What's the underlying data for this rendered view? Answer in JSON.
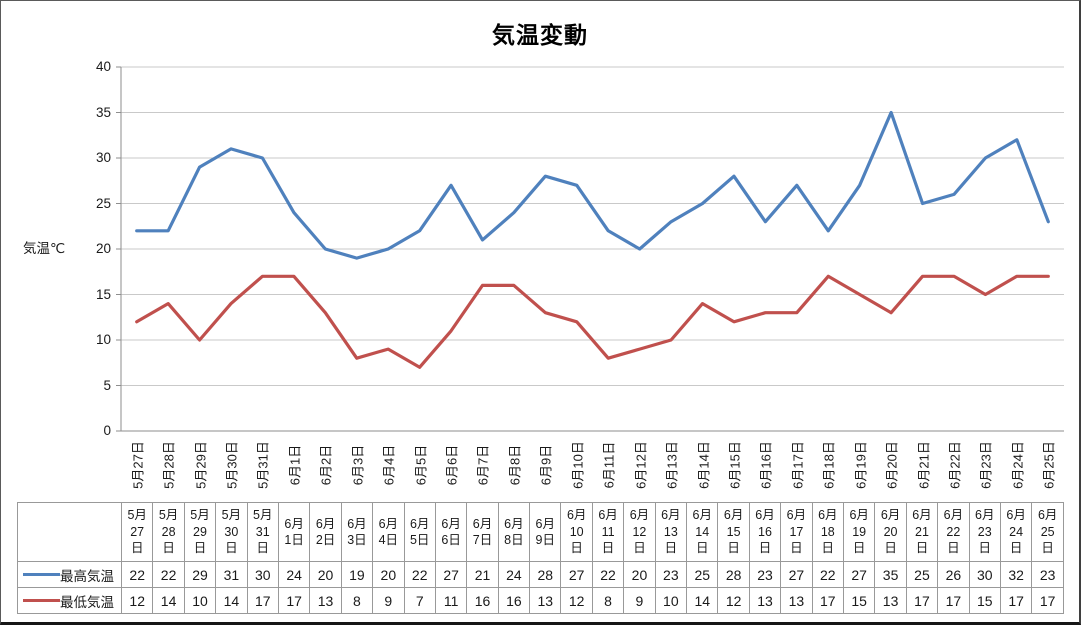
{
  "chart_data": {
    "type": "line",
    "title": "気温変動",
    "ylabel": "気温℃",
    "ylim": [
      0,
      40
    ],
    "y_ticks": [
      0,
      5,
      10,
      15,
      20,
      25,
      30,
      35,
      40
    ],
    "grid": true,
    "legend_position": "data-table-left",
    "categories": [
      "5月27日",
      "5月28日",
      "5月29日",
      "5月30日",
      "5月31日",
      "6月1日",
      "6月2日",
      "6月3日",
      "6月4日",
      "6月5日",
      "6月6日",
      "6月7日",
      "6月8日",
      "6月9日",
      "6月10日",
      "6月11日",
      "6月12日",
      "6月13日",
      "6月14日",
      "6月15日",
      "6月16日",
      "6月17日",
      "6月18日",
      "6月19日",
      "6月20日",
      "6月21日",
      "6月22日",
      "6月23日",
      "6月24日",
      "6月25日"
    ],
    "series": [
      {
        "name": "最高気温",
        "color": "#4F81BD",
        "values": [
          22,
          22,
          29,
          31,
          30,
          24,
          20,
          19,
          20,
          22,
          27,
          21,
          24,
          28,
          27,
          22,
          20,
          23,
          25,
          28,
          23,
          27,
          22,
          27,
          35,
          25,
          26,
          30,
          32,
          23
        ]
      },
      {
        "name": "最低気温",
        "color": "#C0504D",
        "values": [
          12,
          14,
          10,
          14,
          17,
          17,
          13,
          8,
          9,
          7,
          11,
          16,
          16,
          13,
          12,
          8,
          9,
          10,
          14,
          12,
          13,
          13,
          17,
          15,
          13,
          17,
          17,
          15,
          17,
          17
        ]
      }
    ],
    "colors": {
      "gridline": "#C9C9C9",
      "axis": "#8E8E8E",
      "table_border": "#999999",
      "text": "#1A1A1A"
    }
  }
}
